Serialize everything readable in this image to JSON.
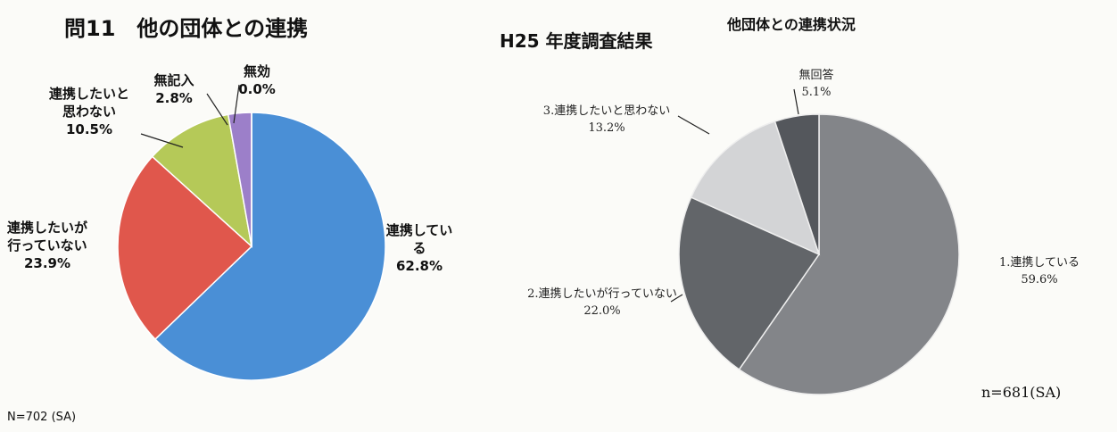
{
  "chart_data": [
    {
      "type": "pie",
      "title": "問11　他の団体との連携",
      "note": "N=702 (SA)",
      "categories": [
        "連携している",
        "連携したいが行っていない",
        "連携したいと思わない",
        "無記入",
        "無効"
      ],
      "values": [
        62.8,
        23.9,
        10.5,
        2.8,
        0.0
      ],
      "value_labels": [
        "62.8%",
        "23.9%",
        "10.5%",
        "2.8%",
        "0.0%"
      ],
      "colors": [
        "#4a8fd6",
        "#e0574c",
        "#b5c958",
        "#9c7fc9",
        "#5aa8c8"
      ]
    },
    {
      "type": "pie",
      "title": "H25 年度調査結果",
      "subtitle": "他団体との連携状況",
      "note": "n=681(SA)",
      "categories": [
        "1.連携している",
        "2.連携したいが行っていない",
        "3.連携したいと思わない",
        "無回答"
      ],
      "values": [
        59.6,
        22.0,
        13.2,
        5.1
      ],
      "value_labels": [
        "59.6%",
        "22.0%",
        "13.2%",
        "5.1%"
      ],
      "colors": [
        "#838589",
        "#626569",
        "#d3d4d6",
        "#54575c"
      ]
    }
  ]
}
